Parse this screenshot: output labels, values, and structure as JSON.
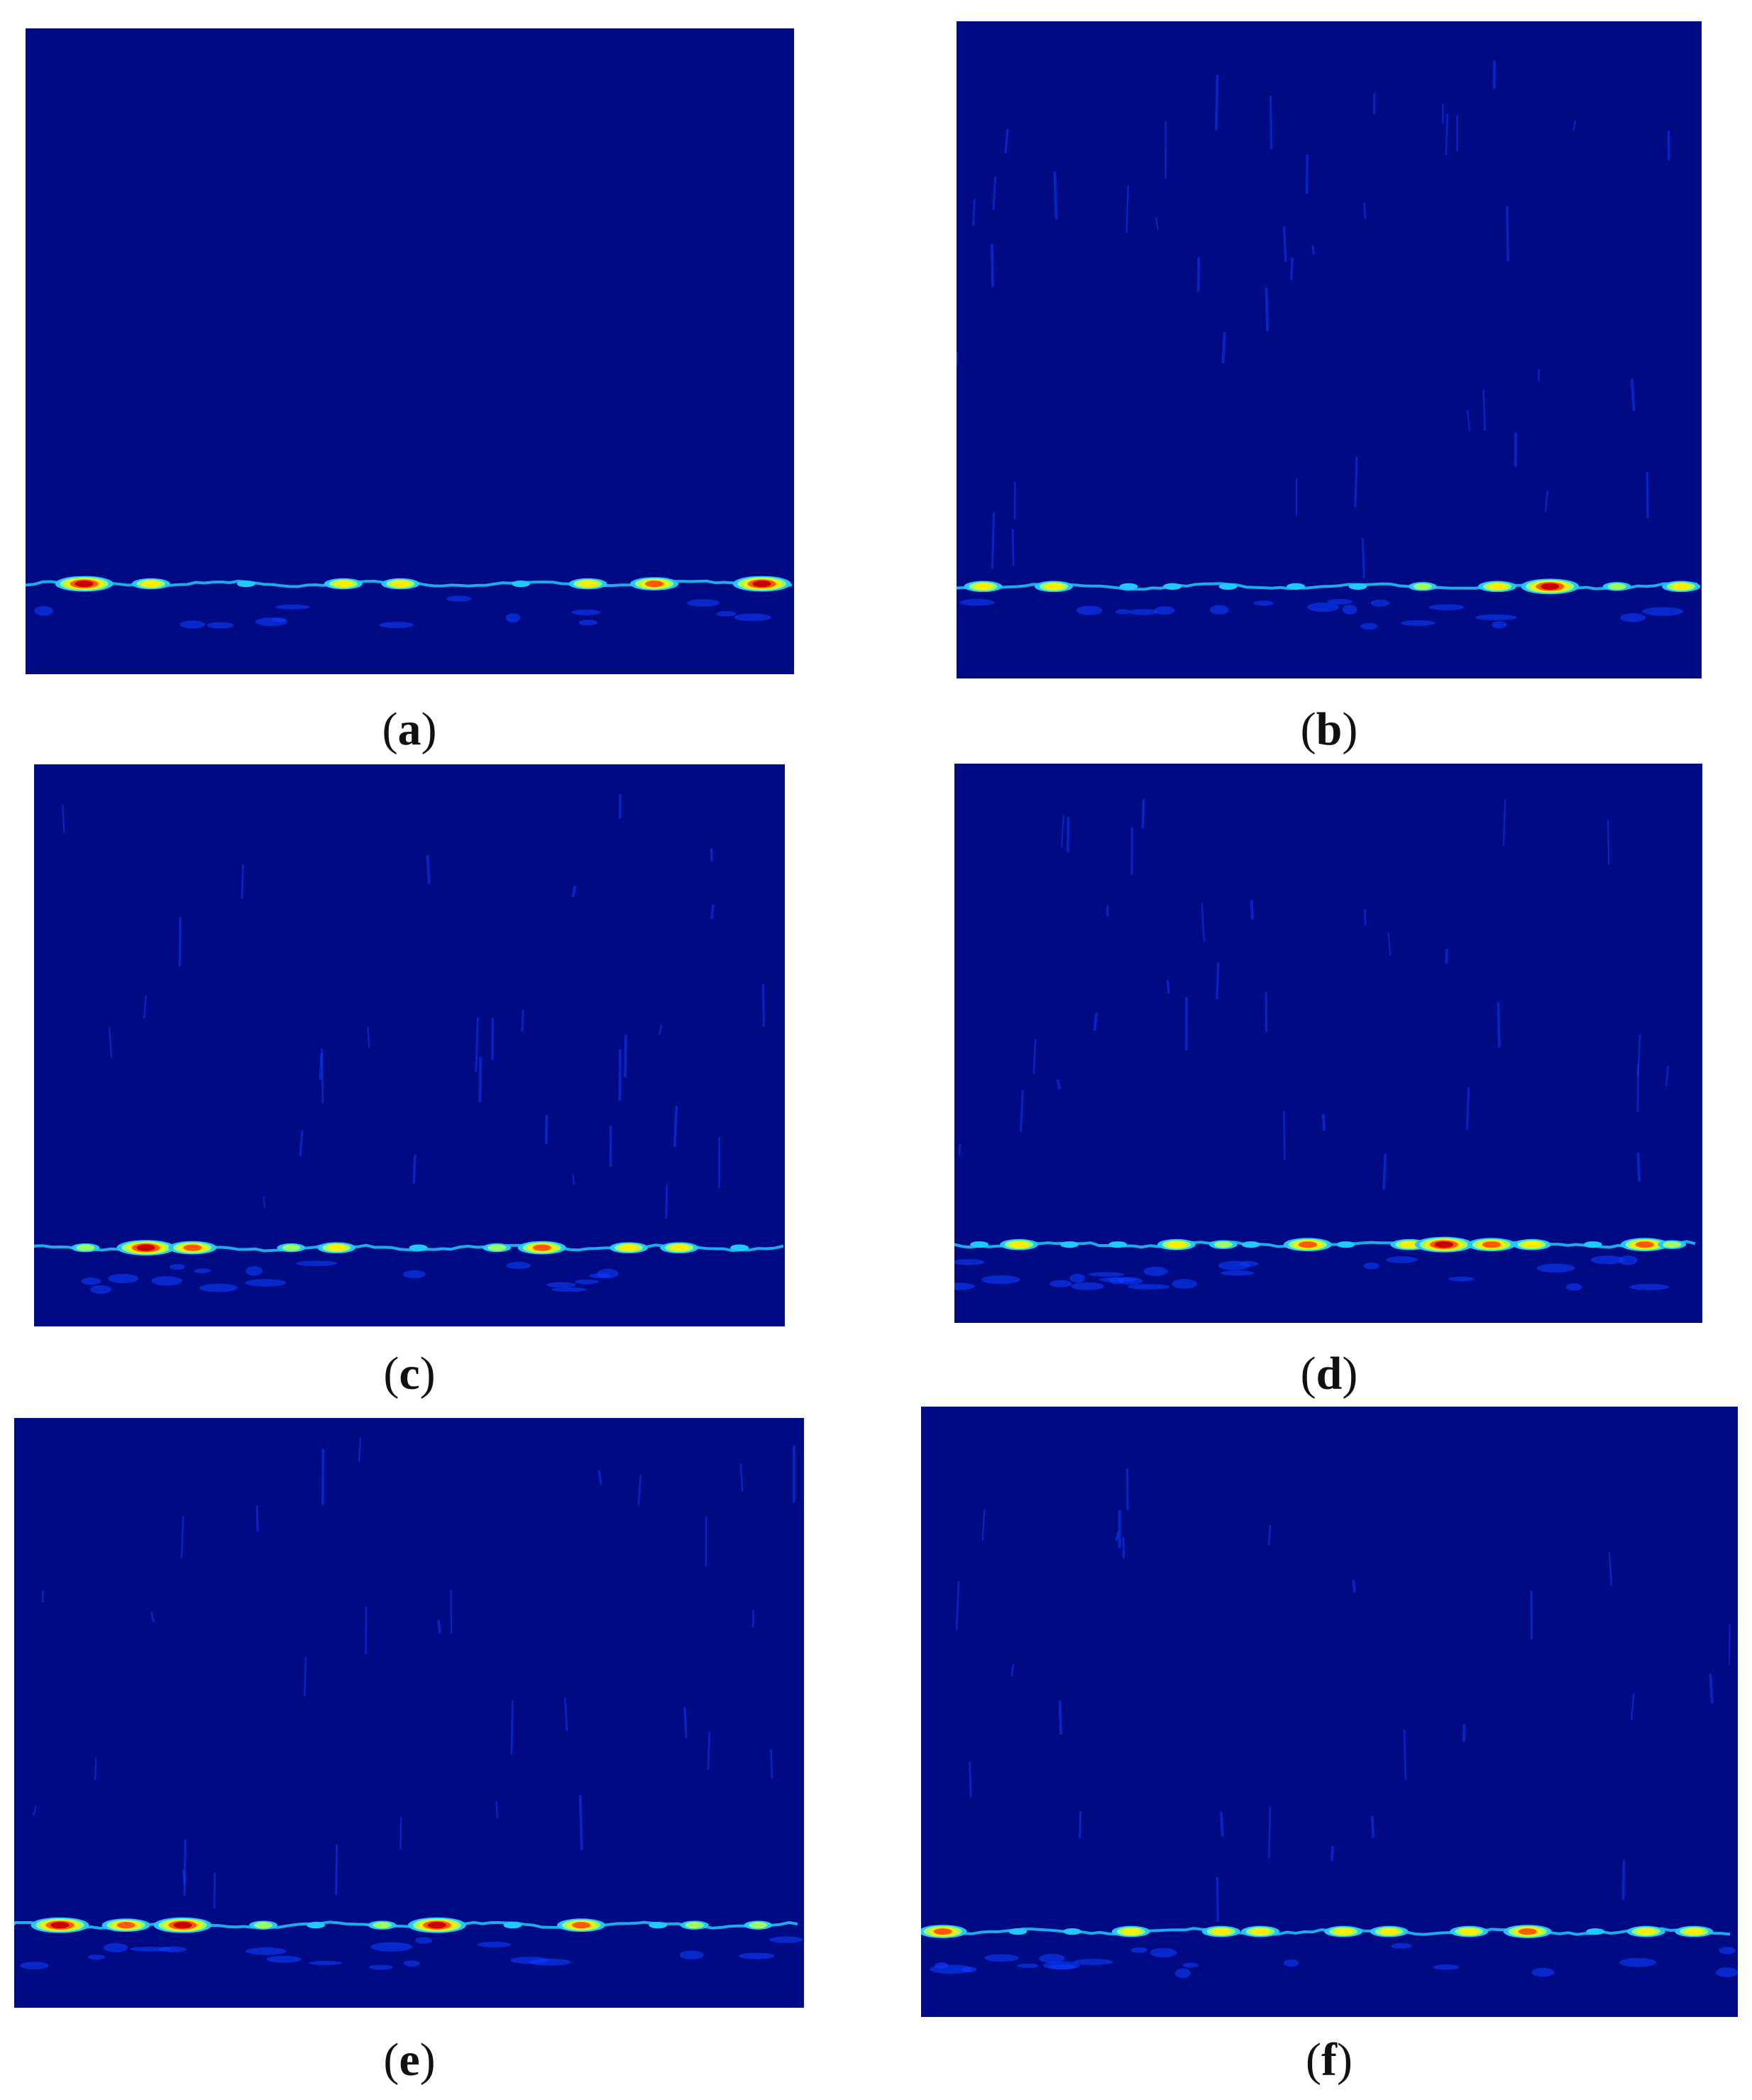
{
  "figure": {
    "background_color": "#000a82",
    "colormap": [
      "#000a82",
      "#0a3cff",
      "#22c8ff",
      "#9aff66",
      "#ffee00",
      "#ff5a00",
      "#c80000"
    ],
    "panels": [
      {
        "id": "a",
        "caption": "a"
      },
      {
        "id": "b",
        "caption": "b"
      },
      {
        "id": "c",
        "caption": "c"
      },
      {
        "id": "d",
        "caption": "d"
      },
      {
        "id": "e",
        "caption": "e"
      },
      {
        "id": "f",
        "caption": "f"
      }
    ]
  }
}
